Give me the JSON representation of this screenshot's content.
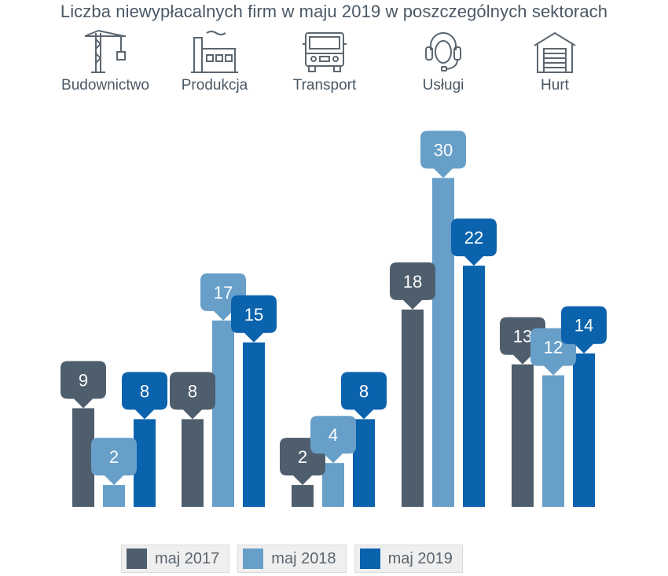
{
  "chart_data": {
    "type": "bar",
    "title": "Liczba niewypłacalnych firm w maju 2019 w poszczególnych sektorach",
    "categories": [
      "Budownictwo",
      "Produkcja",
      "Transport",
      "Usługi",
      "Hurt"
    ],
    "category_icons": [
      "crane-icon",
      "factory-icon",
      "truck-icon",
      "headset-icon",
      "warehouse-icon"
    ],
    "series": [
      {
        "name": "maj 2017",
        "color": "#4f5e6d",
        "values": [
          9,
          8,
          2,
          18,
          13
        ]
      },
      {
        "name": "maj 2018",
        "color": "#679fc9",
        "values": [
          2,
          17,
          4,
          30,
          12
        ]
      },
      {
        "name": "maj 2019",
        "color": "#0b62ad",
        "values": [
          8,
          15,
          8,
          22,
          14
        ]
      }
    ],
    "ylim": [
      0,
      30
    ],
    "grid": false,
    "legend_position": "bottom",
    "data_labels": true
  }
}
